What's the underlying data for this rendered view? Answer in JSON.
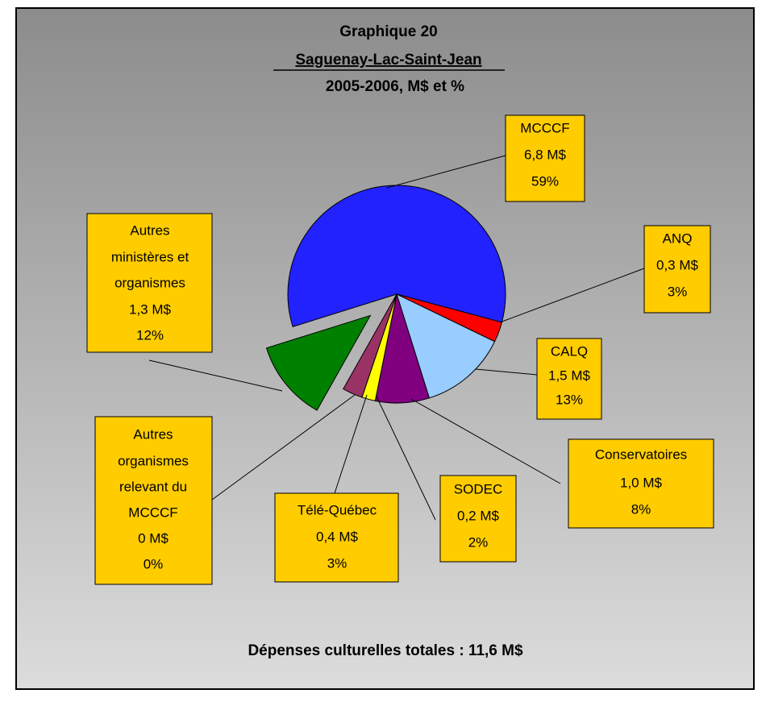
{
  "chart_data": {
    "type": "pie",
    "title": [
      "Graphique 20",
      "Saguenay-Lac-Saint-Jean",
      "2005-2006, M$ et %"
    ],
    "categories": [
      [
        "MCCCF"
      ],
      [
        "ANQ"
      ],
      [
        "CALQ"
      ],
      [
        "Conservatoires"
      ],
      [
        "SODEC"
      ],
      [
        "Télé-Québec"
      ],
      [
        "Autres",
        "organismes",
        "relevant du",
        "MCCCF"
      ],
      [
        "Autres",
        "ministères et",
        "organismes"
      ]
    ],
    "values": [
      59,
      3,
      13,
      8,
      2,
      3,
      0,
      12
    ],
    "value_labels": [
      "59%",
      "3%",
      "13%",
      "8%",
      "2%",
      "3%",
      "0%",
      "12%"
    ],
    "amount_labels": [
      "6,8 M$",
      "0,3 M$",
      "1,5 M$",
      "1,0 M$",
      "0,2 M$",
      "0,4 M$",
      "0 M$",
      "1,3 M$"
    ],
    "colors": [
      "#2222ff",
      "#ff0000",
      "#99ccff",
      "#800080",
      "#ffff00",
      "#993366",
      "#cccccc",
      "#008000"
    ],
    "exploded": [
      7
    ],
    "footer": "Dépenses culturelles totales :  11,6 M$"
  }
}
